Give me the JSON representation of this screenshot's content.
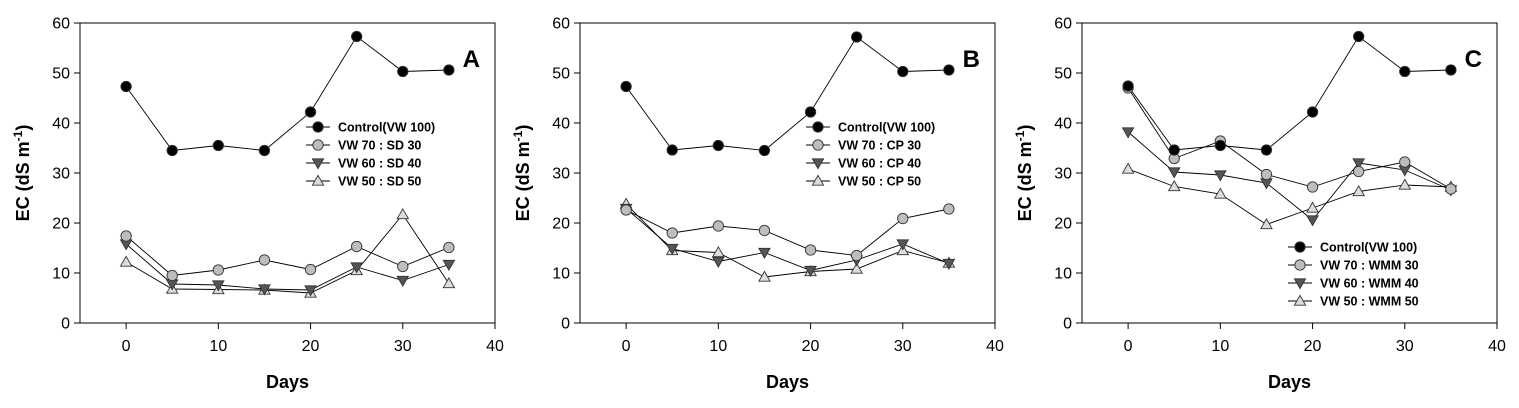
{
  "chart_data": [
    {
      "type": "line",
      "panel_label": "A",
      "xlabel": "Days",
      "ylabel_main": "EC (dS m",
      "ylabel_sup": "-1",
      "ylabel_tail": ")",
      "xlim": [
        -5,
        40
      ],
      "ylim": [
        0,
        60
      ],
      "xticks": [
        0,
        10,
        20,
        30,
        40
      ],
      "yticks": [
        0,
        10,
        20,
        30,
        40,
        50,
        60
      ],
      "legend_position": "center-right",
      "series": [
        {
          "name": "Control(VW 100)",
          "marker": "circle",
          "fill": "#000000",
          "x": [
            0,
            5,
            10,
            15,
            20,
            25,
            30,
            35
          ],
          "values": [
            47.3,
            34.5,
            35.5,
            34.5,
            42.2,
            57.3,
            50.3,
            50.6
          ]
        },
        {
          "name": "VW 70 : SD 30",
          "marker": "circle",
          "fill": "#bdbdbd",
          "x": [
            0,
            5,
            10,
            15,
            20,
            25,
            30,
            35
          ],
          "values": [
            17.4,
            9.5,
            10.6,
            12.6,
            10.7,
            15.3,
            11.3,
            15.1
          ]
        },
        {
          "name": "VW 60 : SD 40",
          "marker": "triangle-down",
          "fill": "#555555",
          "x": [
            0,
            5,
            10,
            15,
            20,
            25,
            30,
            35
          ],
          "values": [
            15.8,
            7.8,
            7.6,
            6.8,
            6.6,
            11.2,
            8.5,
            11.7
          ]
        },
        {
          "name": "VW 50 : SD 50",
          "marker": "triangle-up",
          "fill": "#dddddd",
          "x": [
            0,
            5,
            10,
            15,
            20,
            25,
            30,
            35
          ],
          "values": [
            12.2,
            6.8,
            6.7,
            6.6,
            6.0,
            10.5,
            21.7,
            7.9
          ]
        }
      ]
    },
    {
      "type": "line",
      "panel_label": "B",
      "xlabel": "Days",
      "ylabel_main": "EC (dS m",
      "ylabel_sup": "-1",
      "ylabel_tail": ")",
      "xlim": [
        -5,
        40
      ],
      "ylim": [
        0,
        60
      ],
      "xticks": [
        0,
        10,
        20,
        30,
        40
      ],
      "yticks": [
        0,
        10,
        20,
        30,
        40,
        50,
        60
      ],
      "legend_position": "center-right",
      "series": [
        {
          "name": "Control(VW 100)",
          "marker": "circle",
          "fill": "#000000",
          "x": [
            0,
            5,
            10,
            15,
            20,
            25,
            30,
            35
          ],
          "values": [
            47.3,
            34.6,
            35.5,
            34.5,
            42.2,
            57.2,
            50.3,
            50.6
          ]
        },
        {
          "name": "VW 70 : CP 30",
          "marker": "circle",
          "fill": "#bdbdbd",
          "x": [
            0,
            5,
            10,
            15,
            20,
            25,
            30,
            35
          ],
          "values": [
            22.6,
            18.0,
            19.4,
            18.5,
            14.6,
            13.5,
            20.9,
            22.8
          ]
        },
        {
          "name": "VW 60 : CP 40",
          "marker": "triangle-down",
          "fill": "#555555",
          "x": [
            0,
            5,
            10,
            15,
            20,
            25,
            30,
            35
          ],
          "values": [
            22.9,
            14.9,
            12.3,
            14.1,
            10.5,
            12.6,
            15.8,
            11.9
          ]
        },
        {
          "name": "VW 50 : CP 50",
          "marker": "triangle-up",
          "fill": "#dddddd",
          "x": [
            0,
            5,
            10,
            15,
            20,
            25,
            30,
            35
          ],
          "values": [
            23.8,
            14.5,
            14.1,
            9.2,
            10.3,
            10.8,
            14.5,
            12.0
          ]
        }
      ]
    },
    {
      "type": "line",
      "panel_label": "C",
      "xlabel": "Days",
      "ylabel_main": "EC (dS m",
      "ylabel_sup": "-1",
      "ylabel_tail": ")",
      "xlim": [
        -5,
        40
      ],
      "ylim": [
        0,
        60
      ],
      "xticks": [
        0,
        10,
        20,
        30,
        40
      ],
      "yticks": [
        0,
        10,
        20,
        30,
        40,
        50,
        60
      ],
      "legend_position": "bottom-right",
      "series": [
        {
          "name": "Control(VW 100)",
          "marker": "circle",
          "fill": "#000000",
          "x": [
            0,
            5,
            10,
            15,
            20,
            25,
            30,
            35
          ],
          "values": [
            47.4,
            34.6,
            35.5,
            34.6,
            42.2,
            57.3,
            50.3,
            50.6
          ]
        },
        {
          "name": "VW 70 : WMM 30",
          "marker": "circle",
          "fill": "#bdbdbd",
          "x": [
            0,
            5,
            10,
            15,
            20,
            25,
            30,
            35
          ],
          "values": [
            47.0,
            32.9,
            36.4,
            29.7,
            27.2,
            30.3,
            32.2,
            26.8
          ]
        },
        {
          "name": "VW 60 : WMM 40",
          "marker": "triangle-down",
          "fill": "#555555",
          "x": [
            0,
            5,
            10,
            15,
            20,
            25,
            30,
            35
          ],
          "values": [
            38.2,
            30.2,
            29.6,
            28.0,
            20.6,
            32.0,
            30.6,
            26.6
          ]
        },
        {
          "name": "VW 50 : WMM 50",
          "marker": "triangle-up",
          "fill": "#dddddd",
          "x": [
            0,
            5,
            10,
            15,
            20,
            25,
            30,
            35
          ],
          "values": [
            30.8,
            27.3,
            25.8,
            19.7,
            23.0,
            26.3,
            27.6,
            27.2
          ]
        }
      ]
    }
  ]
}
